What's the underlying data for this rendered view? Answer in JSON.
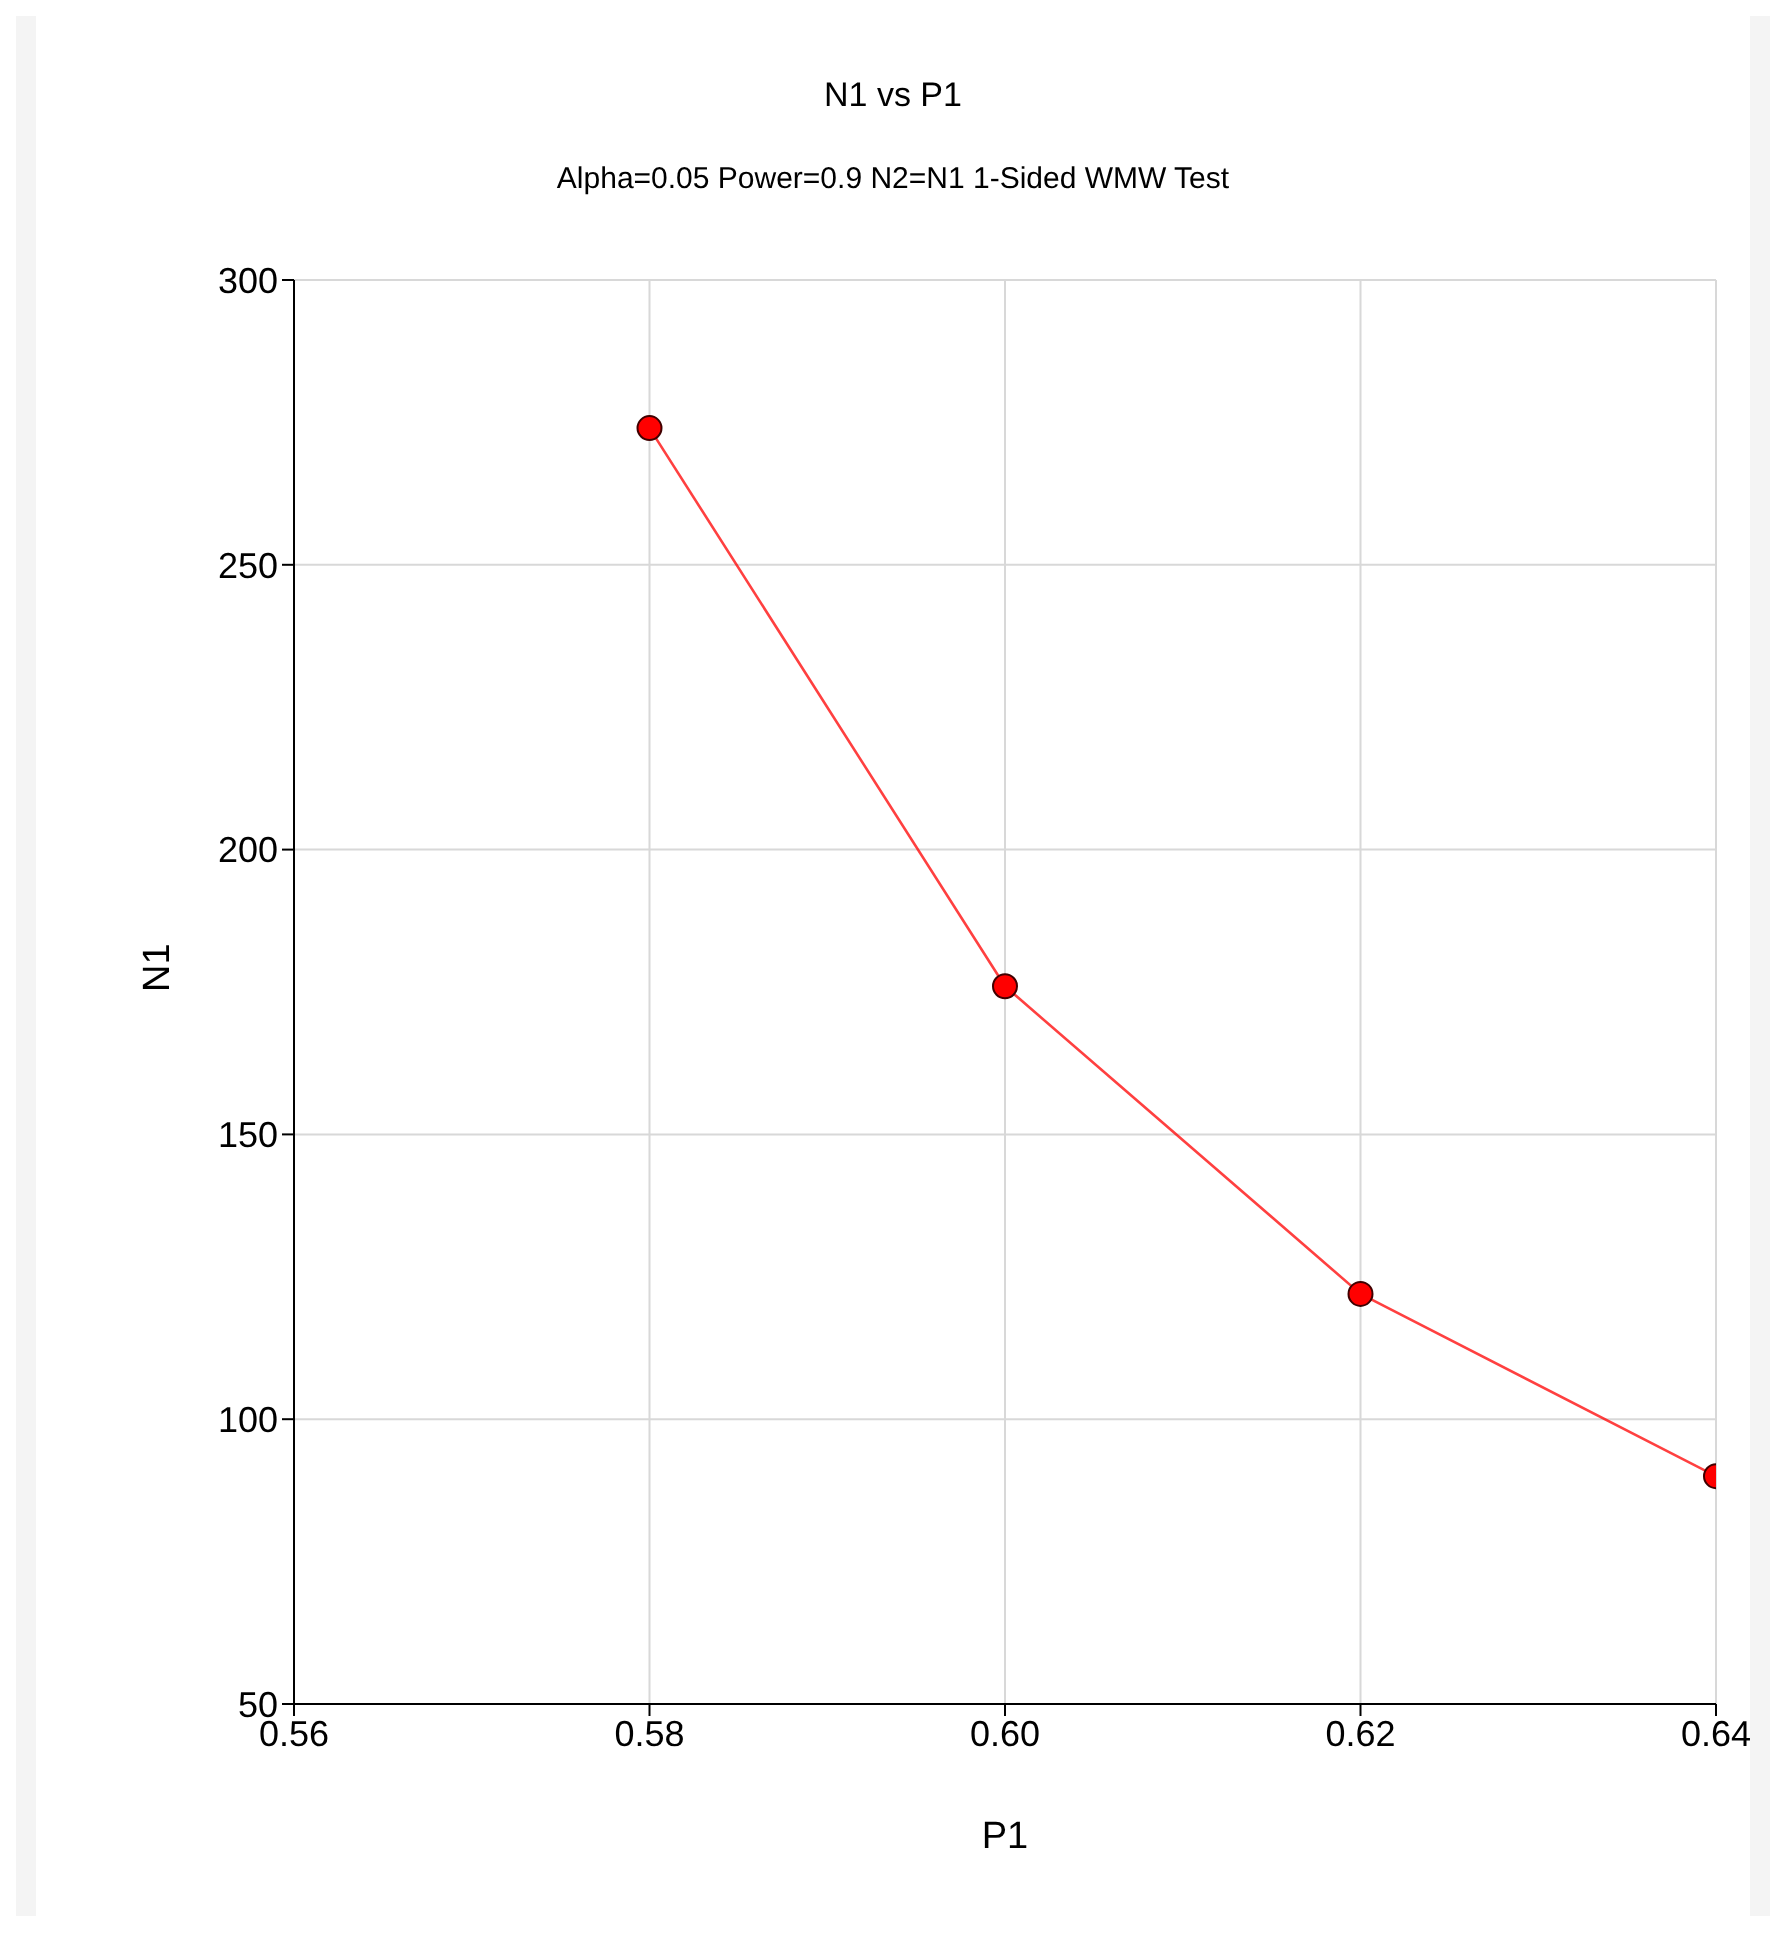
{
  "chart_data": {
    "type": "line",
    "title": "N1 vs P1",
    "subtitle": "Alpha=0.05 Power=0.9 N2=N1 1-Sided WMW Test",
    "xlabel": "P1",
    "ylabel": "N1",
    "x": [
      0.58,
      0.6,
      0.62,
      0.64
    ],
    "series": [
      {
        "color": "#ff0000",
        "values": [
          274,
          176,
          122,
          90
        ]
      }
    ],
    "xlim": [
      0.56,
      0.64
    ],
    "xticks": [
      {
        "value": 0.56,
        "label": "0.56"
      },
      {
        "value": 0.58,
        "label": "0.58"
      },
      {
        "value": 0.6,
        "label": "0.60"
      },
      {
        "value": 0.62,
        "label": "0.62"
      },
      {
        "value": 0.64,
        "label": "0.64"
      }
    ],
    "ylim": [
      50,
      300
    ],
    "yticks": [
      50,
      100,
      150,
      200,
      250,
      300
    ],
    "grid": true,
    "marker": "circle",
    "line_style": "solid",
    "legend": false
  }
}
